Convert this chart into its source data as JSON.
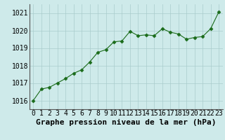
{
  "x": [
    0,
    1,
    2,
    3,
    4,
    5,
    6,
    7,
    8,
    9,
    10,
    11,
    12,
    13,
    14,
    15,
    16,
    17,
    18,
    19,
    20,
    21,
    22,
    23
  ],
  "y": [
    1016.0,
    1016.65,
    1016.75,
    1017.0,
    1017.25,
    1017.55,
    1017.75,
    1018.2,
    1018.75,
    1018.9,
    1019.35,
    1019.4,
    1019.95,
    1019.7,
    1019.75,
    1019.7,
    1020.1,
    1019.9,
    1019.8,
    1019.5,
    1019.6,
    1019.65,
    1020.1,
    1021.05
  ],
  "line_color": "#1a6b1a",
  "marker": "D",
  "marker_size": 2.5,
  "background_color": "#ceeaea",
  "grid_color": "#aacccc",
  "xlabel": "Graphe pression niveau de la mer (hPa)",
  "xlabel_fontsize": 8,
  "tick_fontsize": 7,
  "ylim": [
    1015.5,
    1021.5
  ],
  "yticks": [
    1016,
    1017,
    1018,
    1019,
    1020,
    1021
  ],
  "xticks": [
    0,
    1,
    2,
    3,
    4,
    5,
    6,
    7,
    8,
    9,
    10,
    11,
    12,
    13,
    14,
    15,
    16,
    17,
    18,
    19,
    20,
    21,
    22,
    23
  ]
}
